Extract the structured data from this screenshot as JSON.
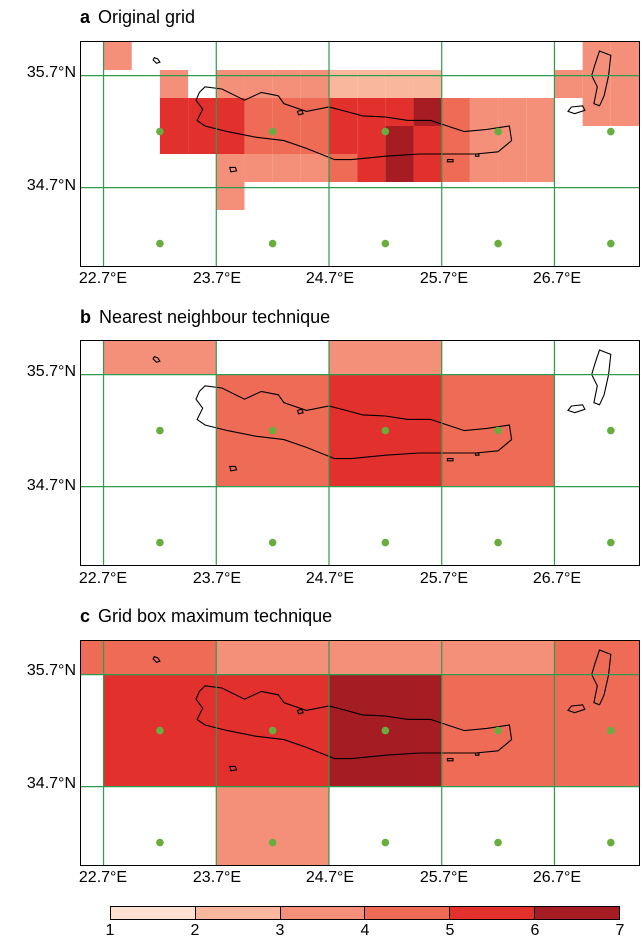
{
  "panels": [
    {
      "letter": "a",
      "title": "Original grid"
    },
    {
      "letter": "b",
      "title": "Nearest neighbour technique"
    },
    {
      "letter": "c",
      "title": "Grid box maximum technique"
    }
  ],
  "axes": {
    "lat_labels": [
      "35.7°N",
      "34.7°N"
    ],
    "lon_labels": [
      "22.7°E",
      "23.7°E",
      "24.7°E",
      "25.7°E",
      "26.7°E"
    ]
  },
  "legend": {
    "ticks": [
      "1",
      "2",
      "3",
      "4",
      "5",
      "6",
      "7"
    ],
    "colors": [
      "#fde0d2",
      "#f9b89d",
      "#f4907a",
      "#ee6b55",
      "#e2302d",
      "#a51c22"
    ]
  },
  "colors": {
    "grid_line": "#2e9b4f",
    "grid_point": "#69ad3f",
    "coastline": "#000000"
  },
  "chart_data": {
    "type": "heatmap",
    "lon_range": [
      22.5,
      27.45
    ],
    "lat_range": [
      34.0,
      36.0
    ],
    "grid_lons": [
      22.7,
      23.7,
      24.7,
      25.7,
      26.7
    ],
    "grid_lats": [
      35.7,
      34.7
    ],
    "grid_points": {
      "lons": [
        23.2,
        24.2,
        25.2,
        26.2,
        27.2
      ],
      "lats": [
        35.2,
        34.2
      ]
    },
    "panels": [
      {
        "id": "a",
        "cell_size_deg": 0.25,
        "cells": [
          {
            "lon": 22.7,
            "lat": 35.75,
            "v": 3
          },
          {
            "lon": 23.2,
            "lat": 35.5,
            "v": 3
          },
          {
            "lon": 23.2,
            "lat": 35.25,
            "v": 5
          },
          {
            "lon": 23.2,
            "lat": 35.0,
            "v": 5
          },
          {
            "lon": 23.45,
            "lat": 35.25,
            "v": 5
          },
          {
            "lon": 23.45,
            "lat": 35.0,
            "v": 5
          },
          {
            "lon": 23.7,
            "lat": 35.5,
            "v": 3
          },
          {
            "lon": 23.7,
            "lat": 35.25,
            "v": 5
          },
          {
            "lon": 23.7,
            "lat": 35.0,
            "v": 5
          },
          {
            "lon": 23.7,
            "lat": 34.75,
            "v": 3
          },
          {
            "lon": 23.7,
            "lat": 34.5,
            "v": 3
          },
          {
            "lon": 23.95,
            "lat": 35.5,
            "v": 3
          },
          {
            "lon": 23.95,
            "lat": 35.25,
            "v": 4
          },
          {
            "lon": 23.95,
            "lat": 35.0,
            "v": 4
          },
          {
            "lon": 23.95,
            "lat": 34.75,
            "v": 3
          },
          {
            "lon": 24.2,
            "lat": 35.5,
            "v": 3
          },
          {
            "lon": 24.2,
            "lat": 35.25,
            "v": 4
          },
          {
            "lon": 24.2,
            "lat": 35.0,
            "v": 4
          },
          {
            "lon": 24.2,
            "lat": 34.75,
            "v": 3
          },
          {
            "lon": 24.45,
            "lat": 35.5,
            "v": 3
          },
          {
            "lon": 24.45,
            "lat": 35.25,
            "v": 4
          },
          {
            "lon": 24.45,
            "lat": 35.0,
            "v": 4
          },
          {
            "lon": 24.45,
            "lat": 34.75,
            "v": 3
          },
          {
            "lon": 24.7,
            "lat": 35.5,
            "v": 2
          },
          {
            "lon": 24.7,
            "lat": 35.25,
            "v": 5
          },
          {
            "lon": 24.7,
            "lat": 35.0,
            "v": 5
          },
          {
            "lon": 24.7,
            "lat": 34.75,
            "v": 4
          },
          {
            "lon": 24.95,
            "lat": 35.5,
            "v": 2
          },
          {
            "lon": 24.95,
            "lat": 35.25,
            "v": 5
          },
          {
            "lon": 24.95,
            "lat": 35.0,
            "v": 5
          },
          {
            "lon": 24.95,
            "lat": 34.75,
            "v": 5
          },
          {
            "lon": 25.2,
            "lat": 35.5,
            "v": 2
          },
          {
            "lon": 25.2,
            "lat": 35.25,
            "v": 5
          },
          {
            "lon": 25.2,
            "lat": 35.0,
            "v": 6
          },
          {
            "lon": 25.2,
            "lat": 34.75,
            "v": 6
          },
          {
            "lon": 25.45,
            "lat": 35.5,
            "v": 2
          },
          {
            "lon": 25.45,
            "lat": 35.25,
            "v": 6
          },
          {
            "lon": 25.45,
            "lat": 35.0,
            "v": 5
          },
          {
            "lon": 25.45,
            "lat": 34.75,
            "v": 5
          },
          {
            "lon": 25.7,
            "lat": 35.25,
            "v": 4
          },
          {
            "lon": 25.7,
            "lat": 35.0,
            "v": 4
          },
          {
            "lon": 25.7,
            "lat": 34.75,
            "v": 4
          },
          {
            "lon": 25.95,
            "lat": 35.25,
            "v": 3
          },
          {
            "lon": 25.95,
            "lat": 35.0,
            "v": 3
          },
          {
            "lon": 25.95,
            "lat": 34.75,
            "v": 3
          },
          {
            "lon": 26.2,
            "lat": 35.25,
            "v": 3
          },
          {
            "lon": 26.2,
            "lat": 35.0,
            "v": 3
          },
          {
            "lon": 26.2,
            "lat": 34.75,
            "v": 3
          },
          {
            "lon": 26.45,
            "lat": 35.25,
            "v": 3
          },
          {
            "lon": 26.45,
            "lat": 35.0,
            "v": 3
          },
          {
            "lon": 26.45,
            "lat": 34.75,
            "v": 3
          },
          {
            "lon": 26.7,
            "lat": 35.5,
            "v": 3
          },
          {
            "lon": 26.95,
            "lat": 35.75,
            "v": 3
          },
          {
            "lon": 26.95,
            "lat": 35.5,
            "v": 3
          },
          {
            "lon": 26.95,
            "lat": 35.25,
            "v": 3
          },
          {
            "lon": 27.2,
            "lat": 35.75,
            "v": 3
          },
          {
            "lon": 27.2,
            "lat": 35.5,
            "v": 3
          },
          {
            "lon": 27.2,
            "lat": 35.25,
            "v": 3
          }
        ]
      },
      {
        "id": "b",
        "cell_size_deg": 1.0,
        "cells": [
          {
            "lon": 22.7,
            "lat": 35.7,
            "v": 3
          },
          {
            "lon": 23.7,
            "lat": 34.7,
            "v": 4
          },
          {
            "lon": 24.7,
            "lat": 35.7,
            "v": 3
          },
          {
            "lon": 24.7,
            "lat": 34.7,
            "v": 5
          },
          {
            "lon": 25.7,
            "lat": 34.7,
            "v": 4
          }
        ]
      },
      {
        "id": "c",
        "cell_size_deg": 1.0,
        "cells": [
          {
            "lon": 21.7,
            "lat": 35.7,
            "v": 4
          },
          {
            "lon": 22.7,
            "lat": 35.7,
            "v": 4
          },
          {
            "lon": 23.7,
            "lat": 35.7,
            "v": 3
          },
          {
            "lon": 24.7,
            "lat": 35.7,
            "v": 3
          },
          {
            "lon": 25.7,
            "lat": 35.7,
            "v": 3
          },
          {
            "lon": 26.7,
            "lat": 35.7,
            "v": 4
          },
          {
            "lon": 22.7,
            "lat": 34.7,
            "v": 5
          },
          {
            "lon": 23.7,
            "lat": 34.7,
            "v": 5
          },
          {
            "lon": 24.7,
            "lat": 34.7,
            "v": 6
          },
          {
            "lon": 25.7,
            "lat": 34.7,
            "v": 4
          },
          {
            "lon": 26.7,
            "lat": 34.7,
            "v": 4
          },
          {
            "lon": 23.7,
            "lat": 33.7,
            "v": 3
          }
        ]
      }
    ],
    "coastline": {
      "crete": [
        [
          23.55,
          35.55
        ],
        [
          23.6,
          35.6
        ],
        [
          23.75,
          35.58
        ],
        [
          23.95,
          35.48
        ],
        [
          24.1,
          35.55
        ],
        [
          24.25,
          35.52
        ],
        [
          24.3,
          35.45
        ],
        [
          24.5,
          35.38
        ],
        [
          24.7,
          35.42
        ],
        [
          24.85,
          35.38
        ],
        [
          25.0,
          35.34
        ],
        [
          25.2,
          35.33
        ],
        [
          25.4,
          35.3
        ],
        [
          25.6,
          35.3
        ],
        [
          25.75,
          35.25
        ],
        [
          25.9,
          35.2
        ],
        [
          26.1,
          35.22
        ],
        [
          26.3,
          35.25
        ],
        [
          26.32,
          35.12
        ],
        [
          26.2,
          35.02
        ],
        [
          26.0,
          35.0
        ],
        [
          25.75,
          35.0
        ],
        [
          25.5,
          35.0
        ],
        [
          25.2,
          34.98
        ],
        [
          24.9,
          34.95
        ],
        [
          24.75,
          34.95
        ],
        [
          24.5,
          35.05
        ],
        [
          24.3,
          35.12
        ],
        [
          24.05,
          35.15
        ],
        [
          23.8,
          35.2
        ],
        [
          23.6,
          35.25
        ],
        [
          23.53,
          35.3
        ],
        [
          23.58,
          35.4
        ],
        [
          23.52,
          35.48
        ],
        [
          23.55,
          35.55
        ]
      ],
      "islands": [
        [
          [
            23.15,
            35.86
          ],
          [
            23.18,
            35.85
          ],
          [
            23.2,
            35.82
          ],
          [
            23.17,
            35.81
          ],
          [
            23.14,
            35.84
          ],
          [
            23.15,
            35.86
          ]
        ],
        [
          [
            23.82,
            34.88
          ],
          [
            23.87,
            34.88
          ],
          [
            23.88,
            34.85
          ],
          [
            23.83,
            34.84
          ],
          [
            23.82,
            34.88
          ]
        ],
        [
          [
            24.42,
            35.38
          ],
          [
            24.46,
            35.39
          ],
          [
            24.47,
            35.36
          ],
          [
            24.43,
            35.35
          ],
          [
            24.42,
            35.38
          ]
        ],
        [
          [
            25.75,
            34.95
          ],
          [
            25.8,
            34.95
          ],
          [
            25.8,
            34.93
          ],
          [
            25.75,
            34.93
          ],
          [
            25.75,
            34.95
          ]
        ],
        [
          [
            26.0,
            35.0
          ],
          [
            26.03,
            35.0
          ],
          [
            26.03,
            34.98
          ],
          [
            26.0,
            34.98
          ],
          [
            26.0,
            35.0
          ]
        ],
        [
          [
            27.1,
            35.92
          ],
          [
            27.2,
            35.88
          ],
          [
            27.18,
            35.7
          ],
          [
            27.14,
            35.52
          ],
          [
            27.1,
            35.43
          ],
          [
            27.05,
            35.45
          ],
          [
            27.08,
            35.6
          ],
          [
            27.03,
            35.7
          ],
          [
            27.06,
            35.8
          ],
          [
            27.1,
            35.92
          ]
        ],
        [
          [
            26.85,
            35.42
          ],
          [
            26.95,
            35.43
          ],
          [
            26.97,
            35.39
          ],
          [
            26.88,
            35.36
          ],
          [
            26.82,
            35.38
          ],
          [
            26.85,
            35.42
          ]
        ]
      ]
    }
  }
}
